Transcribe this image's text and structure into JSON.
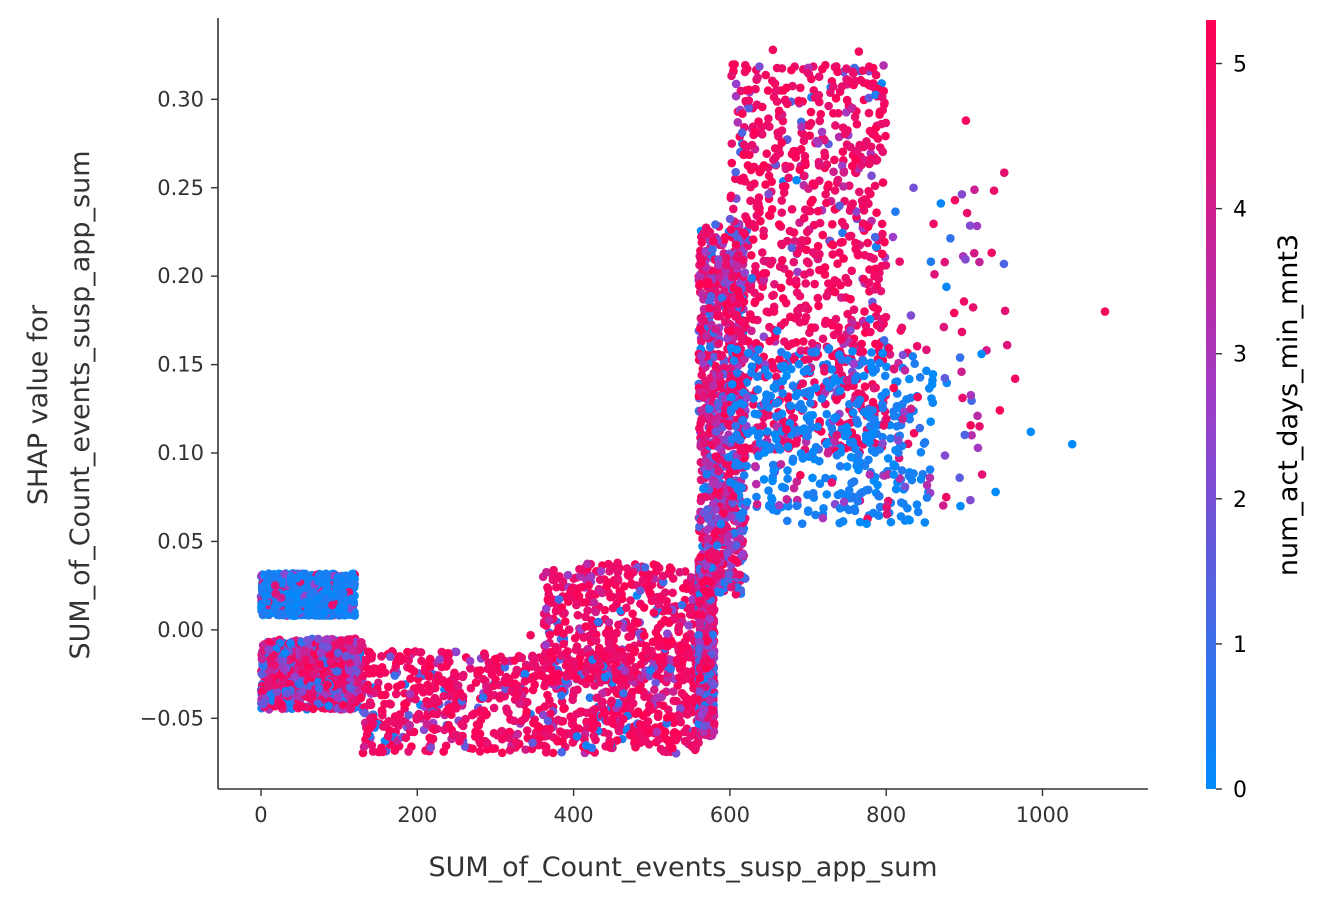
{
  "chart_data": {
    "type": "scatter",
    "xlabel": "SUM_of_Count_events_susp_app_sum",
    "ylabel_lines": [
      "SHAP value for",
      "SUM_of_Count_events_susp_app_sum"
    ],
    "xlim": [
      -55,
      1135
    ],
    "ylim": [
      -0.09,
      0.346
    ],
    "x_ticks": [
      0,
      200,
      400,
      600,
      800,
      1000
    ],
    "x_tick_labels": [
      "0",
      "200",
      "400",
      "600",
      "800",
      "1000"
    ],
    "y_ticks": [
      -0.05,
      0.0,
      0.05,
      0.1,
      0.15,
      0.2,
      0.25,
      0.3
    ],
    "y_tick_labels": [
      "−0.05",
      "0.00",
      "0.05",
      "0.10",
      "0.15",
      "0.20",
      "0.25",
      "0.30"
    ],
    "grid": false,
    "colorbar": {
      "label": "num_act_days_min_mnt3",
      "range": [
        0,
        5.3
      ],
      "ticks": [
        0,
        1,
        2,
        3,
        4,
        5
      ],
      "tick_labels": [
        "0",
        "1",
        "2",
        "3",
        "4",
        "5"
      ],
      "color_low": "#008bfb",
      "color_mid": "#9d3dc9",
      "color_high": "#ff0052"
    },
    "notable_points": [
      {
        "x": 1080,
        "y": 0.18,
        "c": 5
      },
      {
        "x": 1038,
        "y": 0.105,
        "c": 0
      },
      {
        "x": 985,
        "y": 0.112,
        "c": 0
      },
      {
        "x": 965,
        "y": 0.142,
        "c": 5
      },
      {
        "x": 922,
        "y": 0.156,
        "c": 0
      },
      {
        "x": 902,
        "y": 0.288,
        "c": 5
      },
      {
        "x": 888,
        "y": 0.243,
        "c": 5
      },
      {
        "x": 835,
        "y": 0.25,
        "c": 2
      },
      {
        "x": 765,
        "y": 0.327,
        "c": 5
      },
      {
        "x": 655,
        "y": 0.328,
        "c": 5
      },
      {
        "x": 940,
        "y": 0.078,
        "c": 0
      },
      {
        "x": 830,
        "y": 0.062,
        "c": 0
      },
      {
        "x": 895,
        "y": 0.07,
        "c": 0
      },
      {
        "x": 775,
        "y": 0.06,
        "c": 0
      },
      {
        "x": 345,
        "y": -0.003,
        "c": 5
      },
      {
        "x": 370,
        "y": -0.056,
        "c": 5
      }
    ],
    "clusters": [
      {
        "x_range": [
          0,
          120
        ],
        "y_range": [
          0.008,
          0.032
        ],
        "colors": "mostly_low",
        "density": "dense"
      },
      {
        "x_range": [
          0,
          130
        ],
        "y_range": [
          -0.045,
          -0.005
        ],
        "colors": "mixed",
        "density": "dense"
      },
      {
        "x_range": [
          130,
          560
        ],
        "y_range": [
          -0.07,
          -0.012
        ],
        "colors": "mostly_high",
        "density": "dense"
      },
      {
        "x_range": [
          360,
          560
        ],
        "y_range": [
          -0.03,
          0.038
        ],
        "colors": "mostly_high",
        "density": "medium"
      },
      {
        "x_range": [
          560,
          580
        ],
        "y_range": [
          -0.06,
          0.04
        ],
        "colors": "mixed",
        "density": "dense"
      },
      {
        "x_range": [
          560,
          620
        ],
        "y_range": [
          0.02,
          0.23
        ],
        "colors": "mixed",
        "density": "dense"
      },
      {
        "x_range": [
          600,
          800
        ],
        "y_range": [
          0.1,
          0.32
        ],
        "colors": "mostly_high",
        "density": "dense"
      },
      {
        "x_range": [
          600,
          860
        ],
        "y_range": [
          0.06,
          0.16
        ],
        "colors": "mostly_low",
        "density": "medium"
      },
      {
        "x_range": [
          800,
          960
        ],
        "y_range": [
          0.06,
          0.26
        ],
        "colors": "mixed",
        "density": "sparse"
      }
    ]
  }
}
